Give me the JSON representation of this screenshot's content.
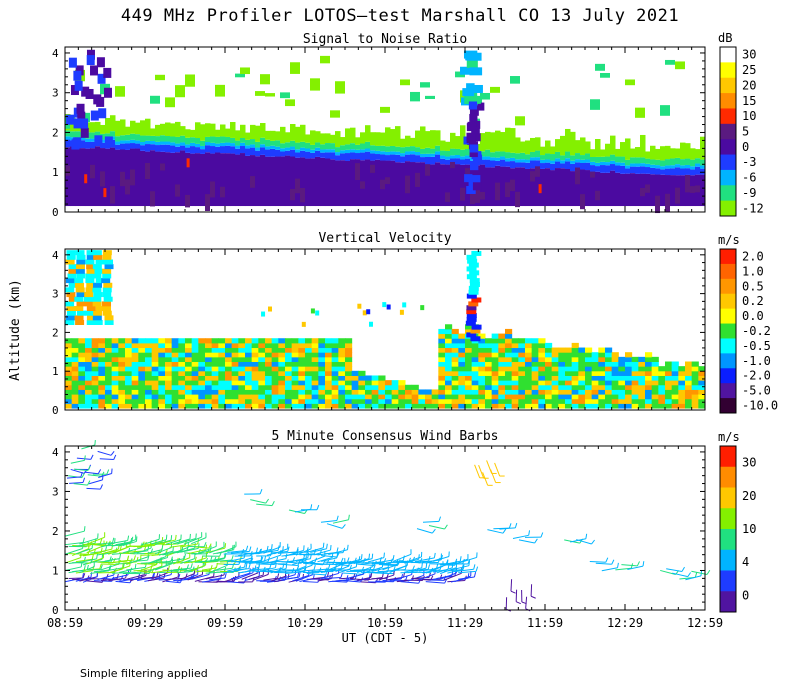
{
  "title": "449 MHz Profiler LOTOS—test Marshall CO 13 July 2021",
  "footnote": "Simple filtering applied",
  "shared": {
    "ylabel": "Altitude (km)",
    "xlabel": "UT  (CDT - 5)",
    "x_ticks": [
      "08:59",
      "09:29",
      "09:59",
      "10:29",
      "10:59",
      "11:29",
      "11:59",
      "12:29",
      "12:59"
    ],
    "y_ticks": [
      "0",
      "1",
      "2",
      "3",
      "4"
    ],
    "ylim": [
      0,
      4.15
    ]
  },
  "chart_data": [
    {
      "type": "heatmap",
      "title": "Signal to Noise Ratio",
      "colorbar_unit": "dB",
      "colorbar_labels": [
        "30",
        "25",
        "20",
        "15",
        "10",
        "5",
        "0",
        "-3",
        "-6",
        "-9",
        "-12"
      ],
      "colorbar_colors": [
        "#ffffff",
        "#ffff00",
        "#ffc800",
        "#ff8c00",
        "#ff2a00",
        "#5a1a80",
        "#4b0aa0",
        "#1e3cff",
        "#00b4ff",
        "#20e080",
        "#84f000"
      ],
      "xlim_hours_after_0859": [
        0,
        4
      ]
    },
    {
      "type": "heatmap",
      "title": "Vertical Velocity",
      "colorbar_unit": "m/s",
      "colorbar_labels": [
        "2.0",
        "1.0",
        "0.5",
        "0.2",
        "0.0",
        "-0.2",
        "-0.5",
        "-1.0",
        "-2.0",
        "-5.0",
        "-10.0"
      ],
      "colorbar_colors": [
        "#ff1e00",
        "#ff6400",
        "#ff9600",
        "#ffc800",
        "#ffff00",
        "#30e030",
        "#00ffff",
        "#0096ff",
        "#0a1eff",
        "#5014a0",
        "#320032"
      ],
      "xlim_hours_after_0859": [
        0,
        4
      ]
    },
    {
      "type": "scatter",
      "title": "5 Minute Consensus Wind Barbs",
      "colorbar_unit": "m/s",
      "colorbar_labels": [
        "30",
        "20",
        "10",
        "4",
        "0"
      ],
      "colorbar_colors": [
        "#ff1e00",
        "#ff8c00",
        "#ffc800",
        "#84f000",
        "#20e080",
        "#00b4ff",
        "#1e3cff",
        "#5014a0"
      ],
      "xlim_hours_after_0859": [
        0,
        4
      ]
    }
  ],
  "colors": {
    "white": "#ffffff",
    "black": "#000000"
  }
}
